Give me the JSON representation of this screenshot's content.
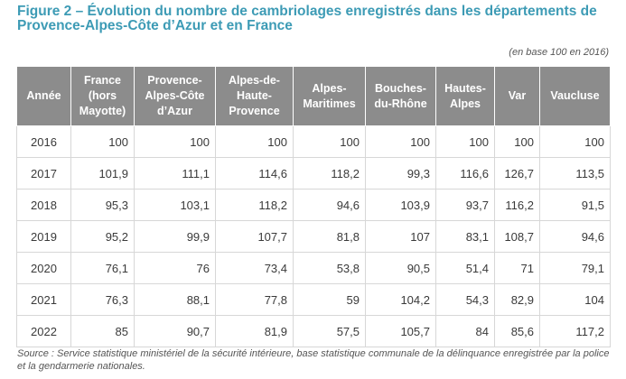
{
  "title": "Figure 2 – Évolution du nombre de cambriolages enregistrés dans les départements de Provence-Alpes-Côte d’Azur et en France",
  "note": "(en base 100 en 2016)",
  "table": {
    "headers": [
      "Année",
      "France (hors Mayotte)",
      "Provence-Alpes-Côte d’Azur",
      "Alpes-de-Haute-Provence",
      "Alpes-Maritimes",
      "Bouches-du-Rhône",
      "Hautes-Alpes",
      "Var",
      "Vaucluse"
    ],
    "rows": [
      [
        "2016",
        "100",
        "100",
        "100",
        "100",
        "100",
        "100",
        "100",
        "100"
      ],
      [
        "2017",
        "101,9",
        "111,1",
        "114,6",
        "118,2",
        "99,3",
        "116,6",
        "126,7",
        "113,5"
      ],
      [
        "2018",
        "95,3",
        "103,1",
        "118,2",
        "94,6",
        "103,9",
        "93,7",
        "116,2",
        "91,5"
      ],
      [
        "2019",
        "95,2",
        "99,9",
        "107,7",
        "81,8",
        "107",
        "83,1",
        "108,7",
        "94,6"
      ],
      [
        "2020",
        "76,1",
        "76",
        "73,4",
        "53,8",
        "90,5",
        "51,4",
        "71",
        "79,1"
      ],
      [
        "2021",
        "76,3",
        "88,1",
        "77,8",
        "59",
        "104,2",
        "54,3",
        "82,9",
        "104"
      ],
      [
        "2022",
        "85",
        "90,7",
        "81,9",
        "57,5",
        "105,7",
        "84",
        "85,6",
        "117,2"
      ]
    ]
  },
  "source": "Source : Service statistique ministériel de la sécurité intérieure, base statistique communale de la délinquance enregistrée par la police et la gendarmerie nationales.",
  "colors": {
    "title": "#3d9bb5",
    "header_bg": "#8c8c8c",
    "header_text": "#ffffff",
    "grid": "#d7d7d7"
  }
}
